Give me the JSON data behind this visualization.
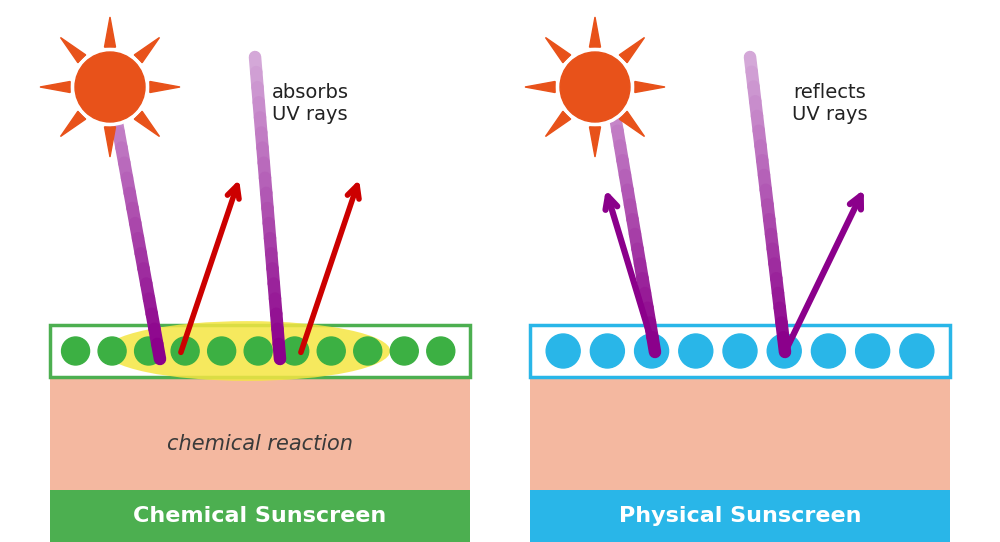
{
  "bg_color": "#ffffff",
  "left_panel": {
    "title": "Chemical Sunscreen",
    "title_color": "#ffffff",
    "title_bg": "#4caf50",
    "label": "absorbs\nUV rays",
    "skin_color": "#f4b8a0",
    "screen_bg": "#ffffff",
    "screen_border": "#4caf50",
    "dot_color": "#3cb043",
    "dot_count": 11,
    "glow_color": "#f5e642",
    "reaction_text": "chemical reaction",
    "reaction_color": "#3a3a3a",
    "sun_body": "#e8521a",
    "sun_rays": "#e8521a",
    "uv_color_top": "#d4a8d8",
    "uv_color_bot": "#8b008b",
    "arrow_in_color": "#cc0000"
  },
  "right_panel": {
    "title": "Physical Sunscreen",
    "title_color": "#ffffff",
    "title_bg": "#29b6e8",
    "label": "reflects\nUV rays",
    "skin_color": "#f4b8a0",
    "screen_bg": "#ffffff",
    "screen_border": "#29b6e8",
    "dot_color": "#29b6e8",
    "dot_count": 9,
    "sun_body": "#e8521a",
    "sun_rays": "#e8521a",
    "uv_color_top": "#d4a8d8",
    "uv_color_bot": "#8b008b",
    "arrow_out_color": "#8b008b"
  },
  "label_fontsize": 14,
  "title_fontsize": 16,
  "reaction_fontsize": 15
}
